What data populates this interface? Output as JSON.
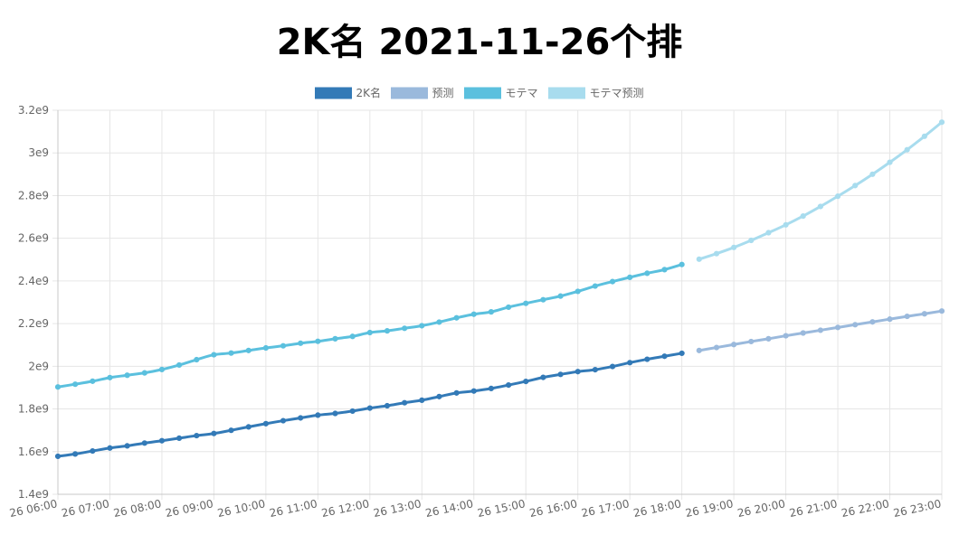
{
  "chart_data": {
    "type": "line",
    "title": "2K名 2021-11-26个排",
    "xlabel": "",
    "ylabel": "",
    "ylim": [
      1400000000,
      3200000000
    ],
    "yticks": [
      "1.4e9",
      "1.6e9",
      "1.8e9",
      "2e9",
      "2.2e9",
      "2.4e9",
      "2.6e9",
      "2.8e9",
      "3e9",
      "3.2e9"
    ],
    "xlim": [
      0,
      17
    ],
    "xticks": [
      "26 06:00",
      "26 07:00",
      "26 08:00",
      "26 09:00",
      "26 10:00",
      "26 11:00",
      "26 12:00",
      "26 13:00",
      "26 14:00",
      "26 15:00",
      "26 16:00",
      "26 17:00",
      "26 18:00",
      "26 19:00",
      "26 20:00",
      "26 21:00",
      "26 22:00",
      "26 23:00"
    ],
    "grid": true,
    "legend_position": "top",
    "series": [
      {
        "name": "2K名",
        "color": "#337ab7",
        "style": "solid",
        "x": [
          0,
          0.333,
          0.667,
          1,
          1.333,
          1.667,
          2,
          2.333,
          2.667,
          3,
          3.333,
          3.667,
          4,
          4.333,
          4.667,
          5,
          5.333,
          5.667,
          6,
          6.333,
          6.667,
          7,
          7.333,
          7.667,
          8,
          8.333,
          8.667,
          9,
          9.333,
          9.667,
          10,
          10.333,
          10.667,
          11,
          11.333,
          11.667,
          12
        ],
        "y": [
          1578000000,
          1589000000,
          1603000000,
          1617000000,
          1627000000,
          1640000000,
          1651000000,
          1663000000,
          1675000000,
          1685000000,
          1700000000,
          1716000000,
          1731000000,
          1745000000,
          1758000000,
          1771000000,
          1779000000,
          1790000000,
          1804000000,
          1815000000,
          1829000000,
          1841000000,
          1858000000,
          1875000000,
          1884000000,
          1896000000,
          1912000000,
          1929000000,
          1948000000,
          1962000000,
          1975000000,
          1984000000,
          1999000000,
          2017000000,
          2033000000,
          2047000000,
          2061000000
        ]
      },
      {
        "name": "预测",
        "color": "#9ab9dc",
        "style": "solid",
        "x": [
          12.333,
          12.667,
          13,
          13.333,
          13.667,
          14,
          14.333,
          14.667,
          15,
          15.333,
          15.667,
          16,
          16.333,
          16.667,
          17
        ],
        "y": [
          2074000000,
          2088000000,
          2102000000,
          2116000000,
          2129000000,
          2143000000,
          2156000000,
          2169000000,
          2182000000,
          2195000000,
          2208000000,
          2221000000,
          2234000000,
          2246000000,
          2259000000
        ]
      },
      {
        "name": "モテマ",
        "color": "#5bc0de",
        "style": "solid",
        "x": [
          0,
          0.333,
          0.667,
          1,
          1.333,
          1.667,
          2,
          2.333,
          2.667,
          3,
          3.333,
          3.667,
          4,
          4.333,
          4.667,
          5,
          5.333,
          5.667,
          6,
          6.333,
          6.667,
          7,
          7.333,
          7.667,
          8,
          8.333,
          8.667,
          9,
          9.333,
          9.667,
          10,
          10.333,
          10.667,
          11,
          11.333,
          11.667,
          12
        ],
        "y": [
          1903000000,
          1916000000,
          1930000000,
          1947000000,
          1958000000,
          1969000000,
          1985000000,
          2006000000,
          2031000000,
          2054000000,
          2062000000,
          2074000000,
          2086000000,
          2096000000,
          2108000000,
          2117000000,
          2129000000,
          2140000000,
          2158000000,
          2166000000,
          2178000000,
          2190000000,
          2207000000,
          2227000000,
          2244000000,
          2255000000,
          2277000000,
          2295000000,
          2312000000,
          2329000000,
          2351000000,
          2376000000,
          2397000000,
          2417000000,
          2436000000,
          2453000000,
          2477000000
        ]
      },
      {
        "name": "モテマ预测",
        "color": "#a8dcee",
        "style": "solid",
        "x": [
          12.333,
          12.667,
          13,
          13.333,
          13.667,
          14,
          14.333,
          14.667,
          15,
          15.333,
          15.667,
          16,
          16.333,
          16.667,
          17
        ],
        "y": [
          2502000000,
          2528000000,
          2557000000,
          2590000000,
          2626000000,
          2663000000,
          2704000000,
          2749000000,
          2797000000,
          2847000000,
          2900000000,
          2956000000,
          3015000000,
          3078000000,
          3144000000
        ]
      }
    ]
  }
}
